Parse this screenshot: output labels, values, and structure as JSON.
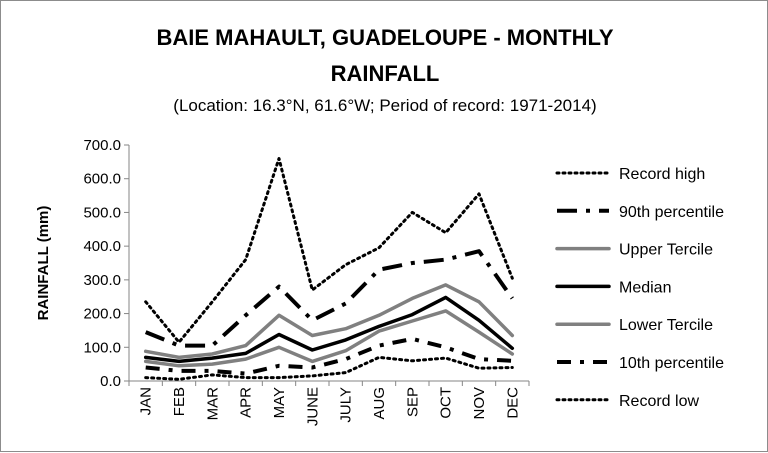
{
  "chart_data": {
    "type": "line",
    "title_lines": [
      "BAIE MAHAULT, GUADELOUPE - MONTHLY",
      "RAINFALL"
    ],
    "subtitle": "(Location: 16.3°N, 61.6°W; Period of record: 1971-2014)",
    "ylabel": "RAINFALL (mm)",
    "ylim": [
      0,
      700
    ],
    "yticks": [
      "0.0",
      "100.0",
      "200.0",
      "300.0",
      "400.0",
      "500.0",
      "600.0",
      "700.0"
    ],
    "categories": [
      "JAN",
      "FEB",
      "MAR",
      "APR",
      "MAY",
      "JUNE",
      "JULY",
      "AUG",
      "SEP",
      "OCT",
      "NOV",
      "DEC"
    ],
    "grid": false,
    "legend_position": "right",
    "series": [
      {
        "name": "Record high",
        "color": "#000000",
        "style": "dotted",
        "values": [
          235,
          115,
          235,
          360,
          660,
          270,
          345,
          395,
          500,
          440,
          555,
          305
        ]
      },
      {
        "name": "90th percentile",
        "color": "#000000",
        "style": "dashdot",
        "values": [
          145,
          105,
          105,
          195,
          280,
          180,
          230,
          330,
          350,
          360,
          385,
          245
        ]
      },
      {
        "name": "Upper Tercile",
        "color": "#808080",
        "style": "solid",
        "values": [
          88,
          70,
          80,
          105,
          195,
          135,
          155,
          195,
          245,
          285,
          235,
          135
        ]
      },
      {
        "name": "Median",
        "color": "#000000",
        "style": "solid",
        "values": [
          70,
          58,
          68,
          82,
          138,
          92,
          122,
          162,
          197,
          248,
          180,
          97
        ]
      },
      {
        "name": "Lower Tercile",
        "color": "#808080",
        "style": "solid",
        "values": [
          58,
          45,
          50,
          65,
          100,
          58,
          90,
          148,
          178,
          208,
          145,
          80
        ]
      },
      {
        "name": "10th percentile",
        "color": "#000000",
        "style": "dashdot2",
        "values": [
          40,
          30,
          30,
          22,
          45,
          40,
          65,
          105,
          125,
          100,
          65,
          60
        ]
      },
      {
        "name": "Record low",
        "color": "#000000",
        "style": "dotted",
        "values": [
          10,
          5,
          18,
          10,
          10,
          15,
          25,
          70,
          60,
          68,
          38,
          40
        ]
      }
    ]
  }
}
